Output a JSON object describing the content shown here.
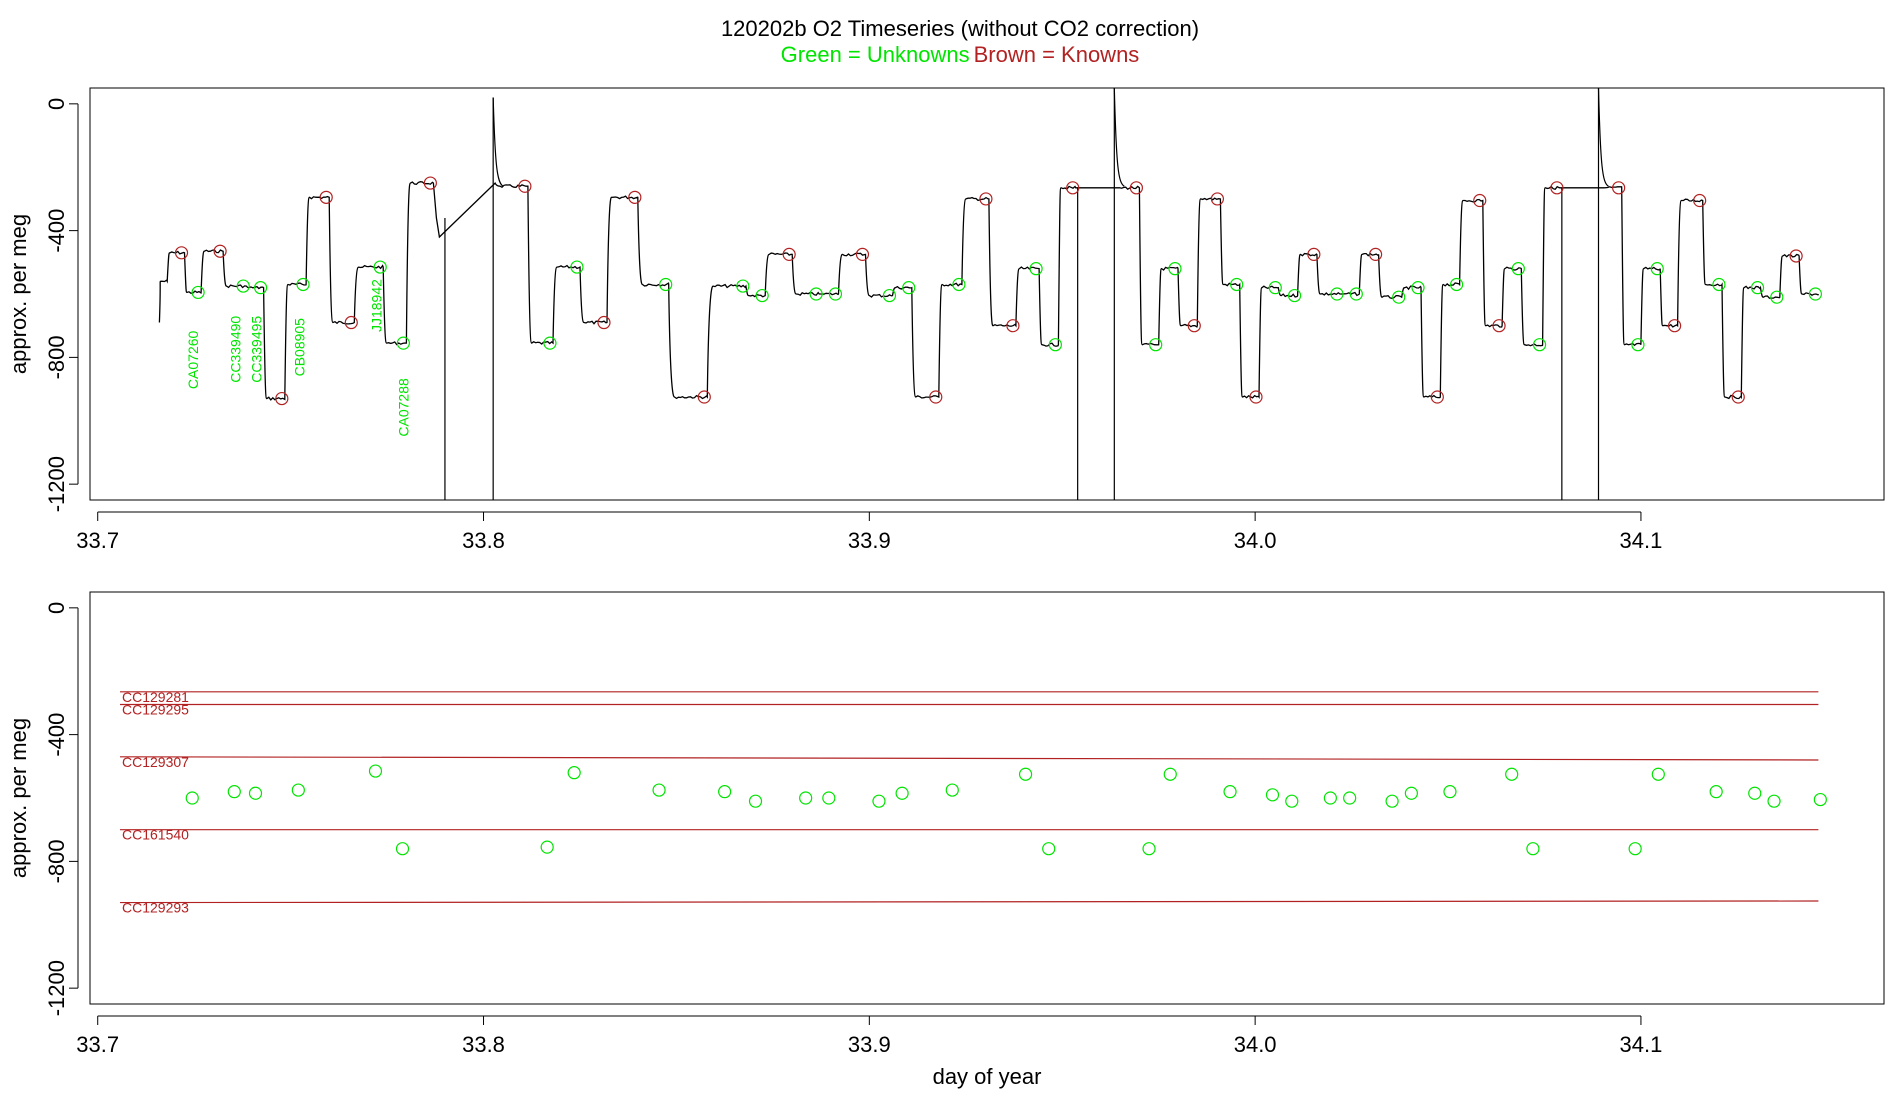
{
  "title": "120202b   O2 Timeseries (without CO2 correction)",
  "subtitle_unknowns": "Green = Unknowns",
  "subtitle_knowns": "Brown = Knowns",
  "colors": {
    "unknown": "#00e400",
    "known": "#b22222",
    "trace": "#000000",
    "axis": "#000000"
  },
  "chart_data": [
    {
      "type": "line",
      "title": "120202b   O2 Timeseries (without CO2 correction)",
      "xlabel": "",
      "ylabel": "approx. per meg",
      "xlim": [
        33.698,
        34.163
      ],
      "ylim": [
        -1250,
        50
      ],
      "xticks": [
        "33.7",
        "33.8",
        "33.9",
        "34.0",
        "34.1"
      ],
      "yticks": [
        "0",
        "-400",
        "-800",
        "-1200"
      ],
      "grid": false,
      "unknown_labels": [
        {
          "text": "CA07260",
          "x": 33.7245,
          "y": -900
        },
        {
          "text": "CC339490",
          "x": 33.7354,
          "y": -880
        },
        {
          "text": "CC339495",
          "x": 33.7409,
          "y": -880
        },
        {
          "text": "CB08905",
          "x": 33.752,
          "y": -860
        },
        {
          "text": "JJ18942",
          "x": 33.772,
          "y": -720
        },
        {
          "text": "CA07288",
          "x": 33.779,
          "y": -1050
        }
      ],
      "segments": [
        {
          "x0": 33.716,
          "x1": 33.718,
          "y": -560,
          "role": "start",
          "v0": -690
        },
        {
          "x0": 33.718,
          "x1": 33.7225,
          "y": -470,
          "role": "known"
        },
        {
          "x0": 33.7225,
          "x1": 33.7268,
          "y": -595,
          "role": "unknown"
        },
        {
          "x0": 33.7268,
          "x1": 33.7325,
          "y": -465,
          "role": "known"
        },
        {
          "x0": 33.7325,
          "x1": 33.7385,
          "y": -575,
          "role": "unknown"
        },
        {
          "x0": 33.7385,
          "x1": 33.743,
          "y": -580,
          "role": "unknown"
        },
        {
          "x0": 33.743,
          "x1": 33.7485,
          "y": -930,
          "role": "known"
        },
        {
          "x0": 33.7485,
          "x1": 33.754,
          "y": -570,
          "role": "unknown"
        },
        {
          "x0": 33.754,
          "x1": 33.76,
          "y": -295,
          "role": "known"
        },
        {
          "x0": 33.76,
          "x1": 33.7665,
          "y": -690,
          "role": "known"
        },
        {
          "x0": 33.7665,
          "x1": 33.774,
          "y": -515,
          "role": "unknown"
        },
        {
          "x0": 33.774,
          "x1": 33.78,
          "y": -755,
          "role": "unknown"
        },
        {
          "x0": 33.78,
          "x1": 33.787,
          "y": -250,
          "role": "known"
        },
        {
          "x0": 33.803,
          "x1": 33.8115,
          "y": -260,
          "role": "known"
        },
        {
          "x0": 33.8115,
          "x1": 33.818,
          "y": -755,
          "role": "unknown"
        },
        {
          "x0": 33.818,
          "x1": 33.825,
          "y": -515,
          "role": "unknown"
        },
        {
          "x0": 33.825,
          "x1": 33.832,
          "y": -690,
          "role": "known"
        },
        {
          "x0": 33.832,
          "x1": 33.84,
          "y": -295,
          "role": "known"
        },
        {
          "x0": 33.84,
          "x1": 33.848,
          "y": -570,
          "role": "unknown"
        },
        {
          "x0": 33.848,
          "x1": 33.858,
          "y": -925,
          "role": "known"
        },
        {
          "x0": 33.858,
          "x1": 33.868,
          "y": -575,
          "role": "unknown"
        },
        {
          "x0": 33.868,
          "x1": 33.873,
          "y": -605,
          "role": "unknown"
        },
        {
          "x0": 33.873,
          "x1": 33.88,
          "y": -475,
          "role": "known"
        },
        {
          "x0": 33.88,
          "x1": 33.887,
          "y": -600,
          "role": "unknown"
        },
        {
          "x0": 33.887,
          "x1": 33.892,
          "y": -600,
          "role": "unknown"
        },
        {
          "x0": 33.892,
          "x1": 33.899,
          "y": -475,
          "role": "known"
        },
        {
          "x0": 33.899,
          "x1": 33.906,
          "y": -605,
          "role": "unknown"
        },
        {
          "x0": 33.906,
          "x1": 33.911,
          "y": -580,
          "role": "unknown"
        },
        {
          "x0": 33.911,
          "x1": 33.918,
          "y": -925,
          "role": "known"
        },
        {
          "x0": 33.918,
          "x1": 33.924,
          "y": -570,
          "role": "unknown"
        },
        {
          "x0": 33.924,
          "x1": 33.931,
          "y": -300,
          "role": "known"
        },
        {
          "x0": 33.931,
          "x1": 33.938,
          "y": -700,
          "role": "known"
        },
        {
          "x0": 33.938,
          "x1": 33.944,
          "y": -520,
          "role": "unknown"
        },
        {
          "x0": 33.944,
          "x1": 33.949,
          "y": -760,
          "role": "unknown"
        },
        {
          "x0": 33.949,
          "x1": 33.9535,
          "y": -265,
          "role": "known"
        },
        {
          "x0": 33.964,
          "x1": 33.97,
          "y": -265,
          "role": "known"
        },
        {
          "x0": 33.97,
          "x1": 33.975,
          "y": -760,
          "role": "unknown"
        },
        {
          "x0": 33.975,
          "x1": 33.98,
          "y": -520,
          "role": "unknown"
        },
        {
          "x0": 33.98,
          "x1": 33.985,
          "y": -700,
          "role": "known"
        },
        {
          "x0": 33.985,
          "x1": 33.991,
          "y": -300,
          "role": "known"
        },
        {
          "x0": 33.991,
          "x1": 33.996,
          "y": -570,
          "role": "unknown"
        },
        {
          "x0": 33.996,
          "x1": 34.001,
          "y": -925,
          "role": "known"
        },
        {
          "x0": 34.001,
          "x1": 34.006,
          "y": -580,
          "role": "unknown"
        },
        {
          "x0": 34.006,
          "x1": 34.011,
          "y": -605,
          "role": "unknown"
        },
        {
          "x0": 34.011,
          "x1": 34.016,
          "y": -475,
          "role": "known"
        },
        {
          "x0": 34.016,
          "x1": 34.022,
          "y": -600,
          "role": "unknown"
        },
        {
          "x0": 34.022,
          "x1": 34.027,
          "y": -600,
          "role": "unknown"
        },
        {
          "x0": 34.027,
          "x1": 34.032,
          "y": -475,
          "role": "known"
        },
        {
          "x0": 34.032,
          "x1": 34.038,
          "y": -610,
          "role": "unknown"
        },
        {
          "x0": 34.038,
          "x1": 34.043,
          "y": -580,
          "role": "unknown"
        },
        {
          "x0": 34.043,
          "x1": 34.048,
          "y": -925,
          "role": "known"
        },
        {
          "x0": 34.048,
          "x1": 34.053,
          "y": -570,
          "role": "unknown"
        },
        {
          "x0": 34.053,
          "x1": 34.059,
          "y": -305,
          "role": "known"
        },
        {
          "x0": 34.059,
          "x1": 34.064,
          "y": -700,
          "role": "known"
        },
        {
          "x0": 34.064,
          "x1": 34.069,
          "y": -520,
          "role": "unknown"
        },
        {
          "x0": 34.069,
          "x1": 34.0745,
          "y": -760,
          "role": "unknown"
        },
        {
          "x0": 34.0745,
          "x1": 34.079,
          "y": -265,
          "role": "known"
        },
        {
          "x0": 34.0895,
          "x1": 34.095,
          "y": -265,
          "role": "known"
        },
        {
          "x0": 34.095,
          "x1": 34.1,
          "y": -760,
          "role": "unknown"
        },
        {
          "x0": 34.1,
          "x1": 34.105,
          "y": -520,
          "role": "unknown"
        },
        {
          "x0": 34.105,
          "x1": 34.1095,
          "y": -700,
          "role": "known"
        },
        {
          "x0": 34.1095,
          "x1": 34.116,
          "y": -305,
          "role": "known"
        },
        {
          "x0": 34.116,
          "x1": 34.121,
          "y": -570,
          "role": "unknown"
        },
        {
          "x0": 34.121,
          "x1": 34.126,
          "y": -925,
          "role": "known"
        },
        {
          "x0": 34.126,
          "x1": 34.131,
          "y": -580,
          "role": "unknown"
        },
        {
          "x0": 34.131,
          "x1": 34.136,
          "y": -610,
          "role": "unknown"
        },
        {
          "x0": 34.136,
          "x1": 34.141,
          "y": -480,
          "role": "known"
        },
        {
          "x0": 34.141,
          "x1": 34.146,
          "y": -600,
          "role": "unknown"
        }
      ],
      "spikes": [
        {
          "x": 33.79,
          "from": -360,
          "to": -1250,
          "type": "drop"
        },
        {
          "x": 33.8025,
          "from": -1250,
          "to": 20,
          "type": "spike"
        },
        {
          "x": 33.954,
          "from": -265,
          "to": -1250,
          "type": "drop"
        },
        {
          "x": 33.9635,
          "from": -1250,
          "to": 50,
          "type": "spike"
        },
        {
          "x": 34.0795,
          "from": -265,
          "to": -1250,
          "type": "drop"
        },
        {
          "x": 34.089,
          "from": -1250,
          "to": 50,
          "type": "spike"
        }
      ]
    },
    {
      "type": "scatter",
      "xlabel": "day of year",
      "ylabel": "approx. per meg",
      "xlim": [
        33.698,
        34.163
      ],
      "ylim": [
        -1250,
        50
      ],
      "xticks": [
        "33.7",
        "33.8",
        "33.9",
        "34.0",
        "34.1"
      ],
      "yticks": [
        "0",
        "-400",
        "-800",
        "-1200"
      ],
      "grid": false,
      "knowns": [
        {
          "name": "CC129281",
          "x0": 33.705,
          "y0": -265,
          "x1": 34.146,
          "y1": -265
        },
        {
          "name": "CC129295",
          "x0": 33.705,
          "y0": -305,
          "x1": 34.146,
          "y1": -305
        },
        {
          "name": "CC129307",
          "x0": 33.705,
          "y0": -470,
          "x1": 34.146,
          "y1": -480
        },
        {
          "name": "CC161540",
          "x0": 33.705,
          "y0": -700,
          "x1": 34.146,
          "y1": -700
        },
        {
          "name": "CC129293",
          "x0": 33.705,
          "y0": -930,
          "x1": 34.146,
          "y1": -925
        }
      ],
      "unknowns": [
        {
          "x": 33.7245,
          "y": -600
        },
        {
          "x": 33.7354,
          "y": -580
        },
        {
          "x": 33.7409,
          "y": -585
        },
        {
          "x": 33.752,
          "y": -575
        },
        {
          "x": 33.772,
          "y": -515
        },
        {
          "x": 33.779,
          "y": -760
        },
        {
          "x": 33.8165,
          "y": -755
        },
        {
          "x": 33.8235,
          "y": -520
        },
        {
          "x": 33.8455,
          "y": -575
        },
        {
          "x": 33.8625,
          "y": -580
        },
        {
          "x": 33.8705,
          "y": -610
        },
        {
          "x": 33.8835,
          "y": -600
        },
        {
          "x": 33.8895,
          "y": -600
        },
        {
          "x": 33.9025,
          "y": -610
        },
        {
          "x": 33.9085,
          "y": -585
        },
        {
          "x": 33.9215,
          "y": -575
        },
        {
          "x": 33.9405,
          "y": -525
        },
        {
          "x": 33.9465,
          "y": -760
        },
        {
          "x": 33.9725,
          "y": -760
        },
        {
          "x": 33.978,
          "y": -525
        },
        {
          "x": 33.9935,
          "y": -580
        },
        {
          "x": 34.0045,
          "y": -590
        },
        {
          "x": 34.0095,
          "y": -610
        },
        {
          "x": 34.0195,
          "y": -600
        },
        {
          "x": 34.0245,
          "y": -600
        },
        {
          "x": 34.0355,
          "y": -610
        },
        {
          "x": 34.0405,
          "y": -585
        },
        {
          "x": 34.0505,
          "y": -580
        },
        {
          "x": 34.0665,
          "y": -525
        },
        {
          "x": 34.072,
          "y": -760
        },
        {
          "x": 34.0985,
          "y": -760
        },
        {
          "x": 34.1045,
          "y": -525
        },
        {
          "x": 34.1195,
          "y": -580
        },
        {
          "x": 34.1295,
          "y": -585
        },
        {
          "x": 34.1345,
          "y": -610
        },
        {
          "x": 34.1465,
          "y": -605
        }
      ]
    }
  ]
}
